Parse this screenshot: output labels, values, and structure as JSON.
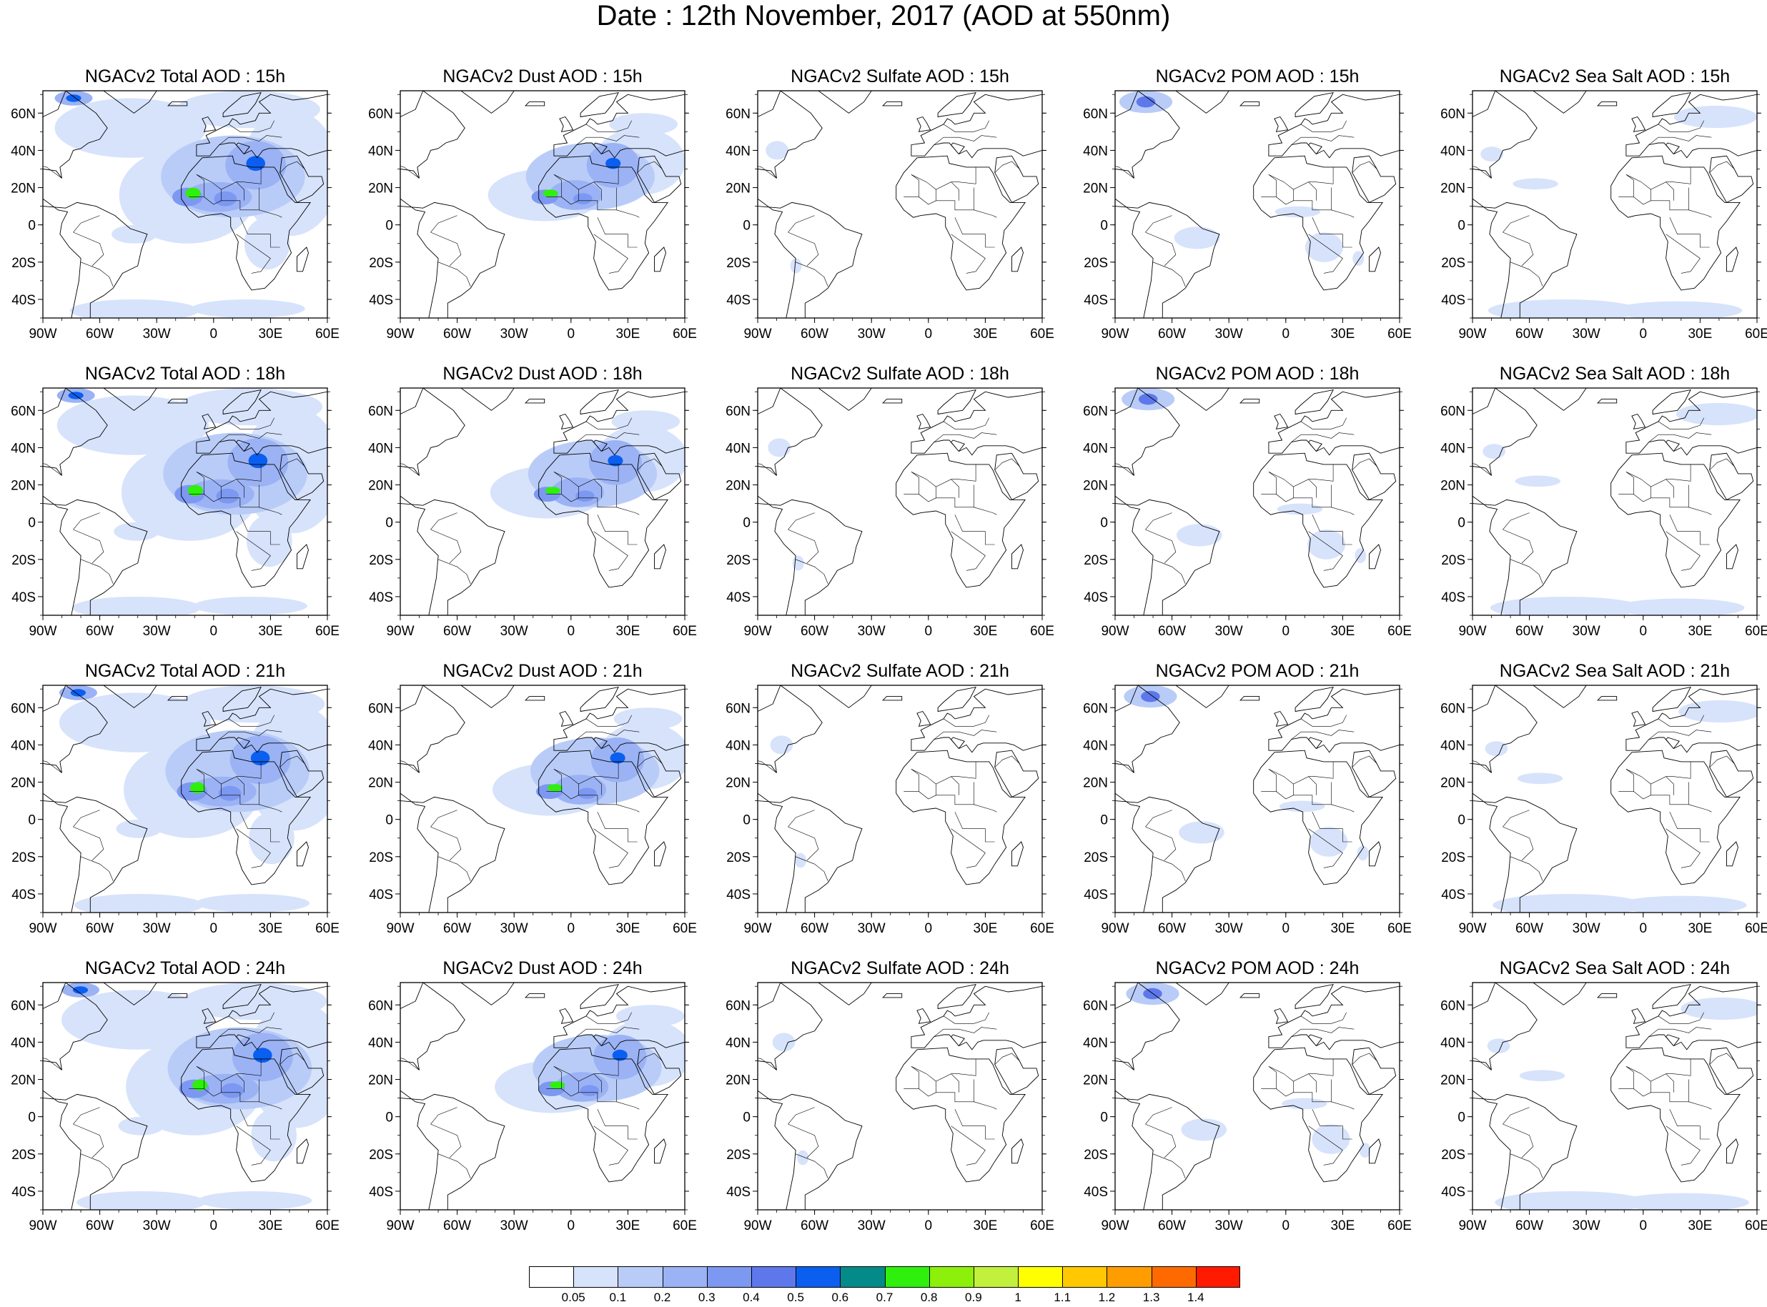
{
  "title": "Date : 12th November, 2017 (AOD at 550nm)",
  "panels": [
    {
      "title": "NGACv2 Total AOD : 15h",
      "species": "total",
      "hour": "15h"
    },
    {
      "title": "NGACv2 Dust AOD : 15h",
      "species": "dust",
      "hour": "15h"
    },
    {
      "title": "NGACv2 Sulfate AOD : 15h",
      "species": "sulfate",
      "hour": "15h"
    },
    {
      "title": "NGACv2 POM AOD : 15h",
      "species": "pom",
      "hour": "15h"
    },
    {
      "title": "NGACv2 Sea Salt AOD : 15h",
      "species": "seasalt",
      "hour": "15h"
    },
    {
      "title": "NGACv2 Total AOD : 18h",
      "species": "total",
      "hour": "18h"
    },
    {
      "title": "NGACv2 Dust AOD : 18h",
      "species": "dust",
      "hour": "18h"
    },
    {
      "title": "NGACv2 Sulfate AOD : 18h",
      "species": "sulfate",
      "hour": "18h"
    },
    {
      "title": "NGACv2 POM AOD : 18h",
      "species": "pom",
      "hour": "18h"
    },
    {
      "title": "NGACv2 Sea Salt AOD : 18h",
      "species": "seasalt",
      "hour": "18h"
    },
    {
      "title": "NGACv2 Total AOD : 21h",
      "species": "total",
      "hour": "21h"
    },
    {
      "title": "NGACv2 Dust AOD : 21h",
      "species": "dust",
      "hour": "21h"
    },
    {
      "title": "NGACv2 Sulfate AOD : 21h",
      "species": "sulfate",
      "hour": "21h"
    },
    {
      "title": "NGACv2 POM AOD : 21h",
      "species": "pom",
      "hour": "21h"
    },
    {
      "title": "NGACv2 Sea Salt AOD : 21h",
      "species": "seasalt",
      "hour": "21h"
    },
    {
      "title": "NGACv2 Total AOD : 24h",
      "species": "total",
      "hour": "24h"
    },
    {
      "title": "NGACv2 Dust AOD : 24h",
      "species": "dust",
      "hour": "24h"
    },
    {
      "title": "NGACv2 Sulfate AOD : 24h",
      "species": "sulfate",
      "hour": "24h"
    },
    {
      "title": "NGACv2 POM AOD : 24h",
      "species": "pom",
      "hour": "24h"
    },
    {
      "title": "NGACv2 Sea Salt  AOD : 24h",
      "species": "seasalt",
      "hour": "24h"
    }
  ],
  "map_extent": {
    "lon": [
      -90,
      60
    ],
    "lat": [
      -50,
      72
    ]
  },
  "lon_ticks": [
    {
      "value": -90,
      "label": "90W"
    },
    {
      "value": -60,
      "label": "60W"
    },
    {
      "value": -30,
      "label": "30W"
    },
    {
      "value": 0,
      "label": "0"
    },
    {
      "value": 30,
      "label": "30E"
    },
    {
      "value": 60,
      "label": "60E"
    }
  ],
  "lat_ticks": [
    {
      "value": 60,
      "label": "60N"
    },
    {
      "value": 40,
      "label": "40N"
    },
    {
      "value": 20,
      "label": "20N"
    },
    {
      "value": 0,
      "label": "0"
    },
    {
      "value": -20,
      "label": "20S"
    },
    {
      "value": -40,
      "label": "40S"
    }
  ],
  "colorbar": {
    "colors": [
      "#ffffff",
      "#d7e3fb",
      "#b9ccf8",
      "#9bb3f5",
      "#7d98f1",
      "#5e78ec",
      "#0b5ff0",
      "#058a8a",
      "#2ef00c",
      "#8cf00a",
      "#c3f03c",
      "#ffff00",
      "#ffc800",
      "#ff9d00",
      "#ff6a00",
      "#ff1a00"
    ],
    "labels": [
      "0.05",
      "0.1",
      "0.2",
      "0.3",
      "0.4",
      "0.5",
      "0.6",
      "0.7",
      "0.8",
      "0.9",
      "1",
      "1.1",
      "1.2",
      "1.3",
      "1.4"
    ]
  }
}
